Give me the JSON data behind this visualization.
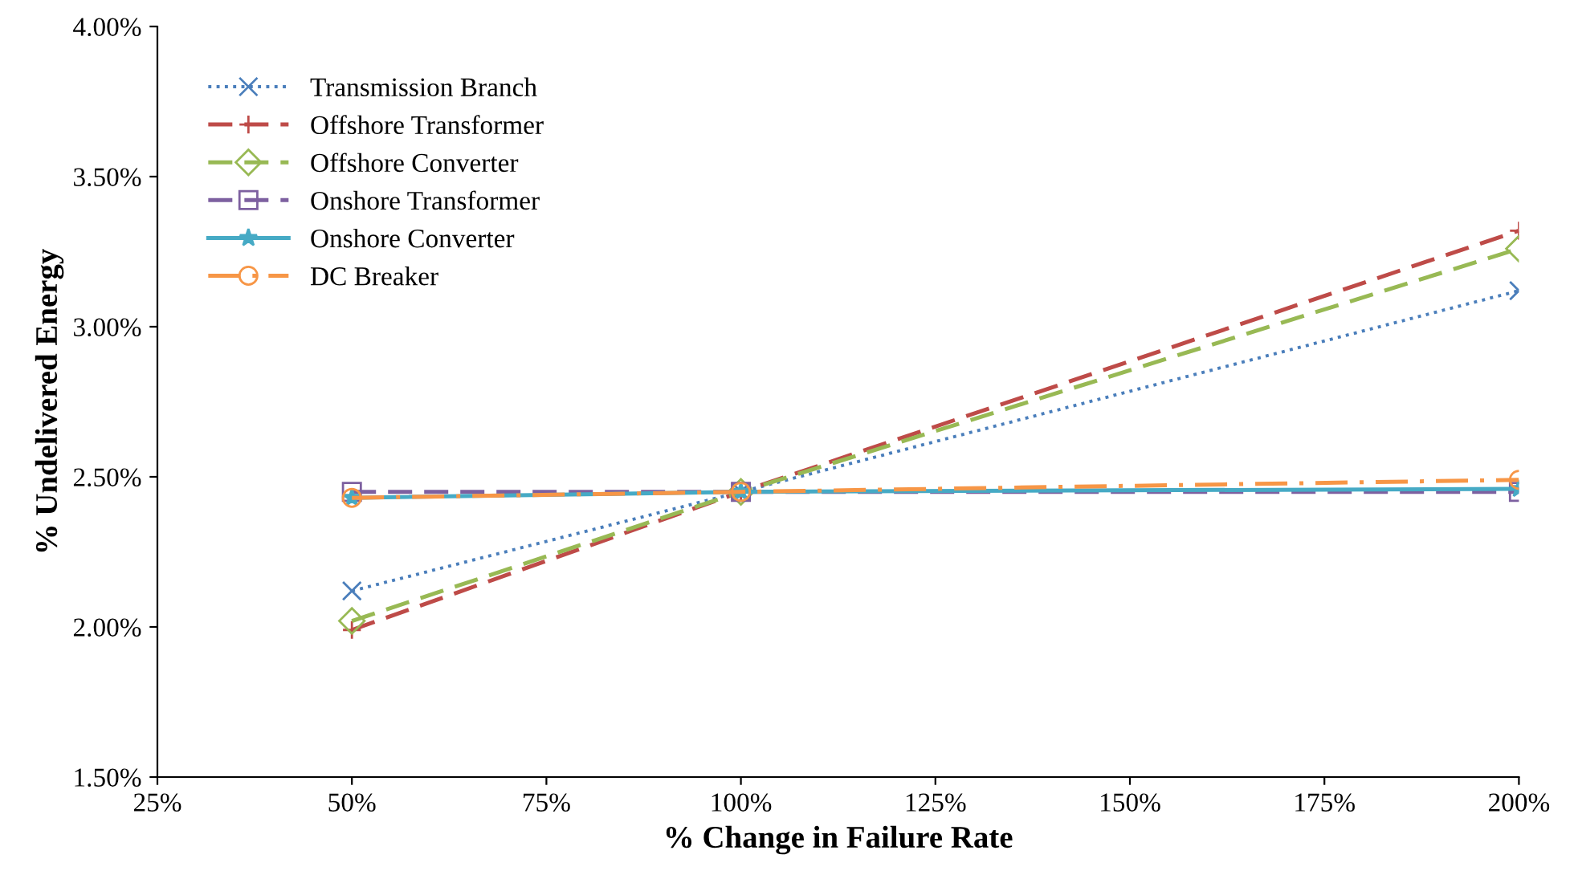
{
  "chart_data": {
    "type": "line",
    "xlabel": "% Change in Failure Rate",
    "ylabel": "% Undelivered Energy",
    "x": [
      50,
      100,
      200
    ],
    "series": [
      {
        "name": "Transmission Branch",
        "color": "#4a7ebb",
        "values": [
          2.12,
          2.45,
          3.12
        ],
        "marker": "cross",
        "line_style": "dotted"
      },
      {
        "name": "Offshore Transformer",
        "color": "#be4b48",
        "values": [
          1.99,
          2.45,
          3.32
        ],
        "marker": "plus",
        "line_style": "dashed"
      },
      {
        "name": "Offshore Converter",
        "color": "#98b954",
        "values": [
          2.02,
          2.45,
          3.26
        ],
        "marker": "diamond",
        "line_style": "dashed"
      },
      {
        "name": "Onshore Transformer",
        "color": "#7d60a0",
        "values": [
          2.45,
          2.45,
          2.45
        ],
        "marker": "square",
        "line_style": "dashed"
      },
      {
        "name": "Onshore Converter",
        "color": "#46aac5",
        "values": [
          2.43,
          2.45,
          2.46
        ],
        "marker": "star",
        "line_style": "solid"
      },
      {
        "name": "DC Breaker",
        "color": "#f79646",
        "values": [
          2.43,
          2.45,
          2.49
        ],
        "marker": "circle",
        "line_style": "dashdot"
      }
    ],
    "xlim": [
      25,
      200
    ],
    "xticks": [
      {
        "value": 25,
        "label": "25%"
      },
      {
        "value": 50,
        "label": "50%"
      },
      {
        "value": 75,
        "label": "75%"
      },
      {
        "value": 100,
        "label": "100%"
      },
      {
        "value": 125,
        "label": "125%"
      },
      {
        "value": 150,
        "label": "150%"
      },
      {
        "value": 175,
        "label": "175%"
      },
      {
        "value": 200,
        "label": "200%"
      }
    ],
    "ylim": [
      1.5,
      4.0
    ],
    "yticks": [
      {
        "value": 1.5,
        "label": "1.50%"
      },
      {
        "value": 2.0,
        "label": "2.00%"
      },
      {
        "value": 2.5,
        "label": "2.50%"
      },
      {
        "value": 3.0,
        "label": "3.00%"
      },
      {
        "value": 3.5,
        "label": "3.50%"
      },
      {
        "value": 4.0,
        "label": "4.00%"
      }
    ],
    "grid": false,
    "legend": "top left"
  }
}
